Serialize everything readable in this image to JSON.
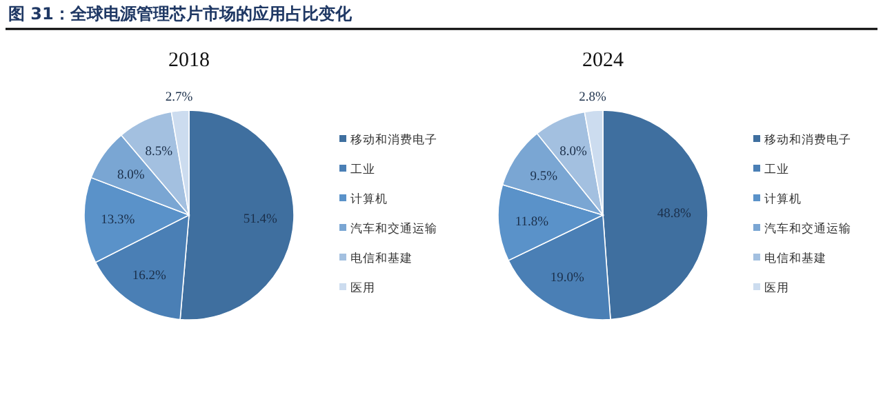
{
  "chart_data": [
    {
      "type": "pie",
      "title": "2018",
      "annotations": [
        "图 31：全球电源管理芯片市场的应用占比变化"
      ],
      "categories": [
        "移动和消费电子",
        "工业",
        "计算机",
        "汽车和交通运输",
        "电信和基建",
        "医用"
      ],
      "values": [
        51.4,
        16.2,
        13.3,
        8.0,
        8.5,
        2.7
      ],
      "value_labels": [
        "51.4%",
        "16.2%",
        "13.3%",
        "8.0%",
        "8.5%",
        "2.7%"
      ],
      "colors": [
        "#3f6f9f",
        "#4a7fb5",
        "#5a92c9",
        "#7aa6d3",
        "#a3c0e0",
        "#ccdcef"
      ],
      "legend": "right"
    },
    {
      "type": "pie",
      "title": "2024",
      "categories": [
        "移动和消费电子",
        "工业",
        "计算机",
        "汽车和交通运输",
        "电信和基建",
        "医用"
      ],
      "values": [
        48.8,
        19.0,
        11.8,
        9.5,
        8.0,
        2.8
      ],
      "value_labels": [
        "48.8%",
        "19.0%",
        "11.8%",
        "9.5%",
        "8.0%",
        "2.8%"
      ],
      "colors": [
        "#3f6f9f",
        "#4a7fb5",
        "#5a92c9",
        "#7aa6d3",
        "#a3c0e0",
        "#ccdcef"
      ],
      "legend": "right"
    }
  ]
}
